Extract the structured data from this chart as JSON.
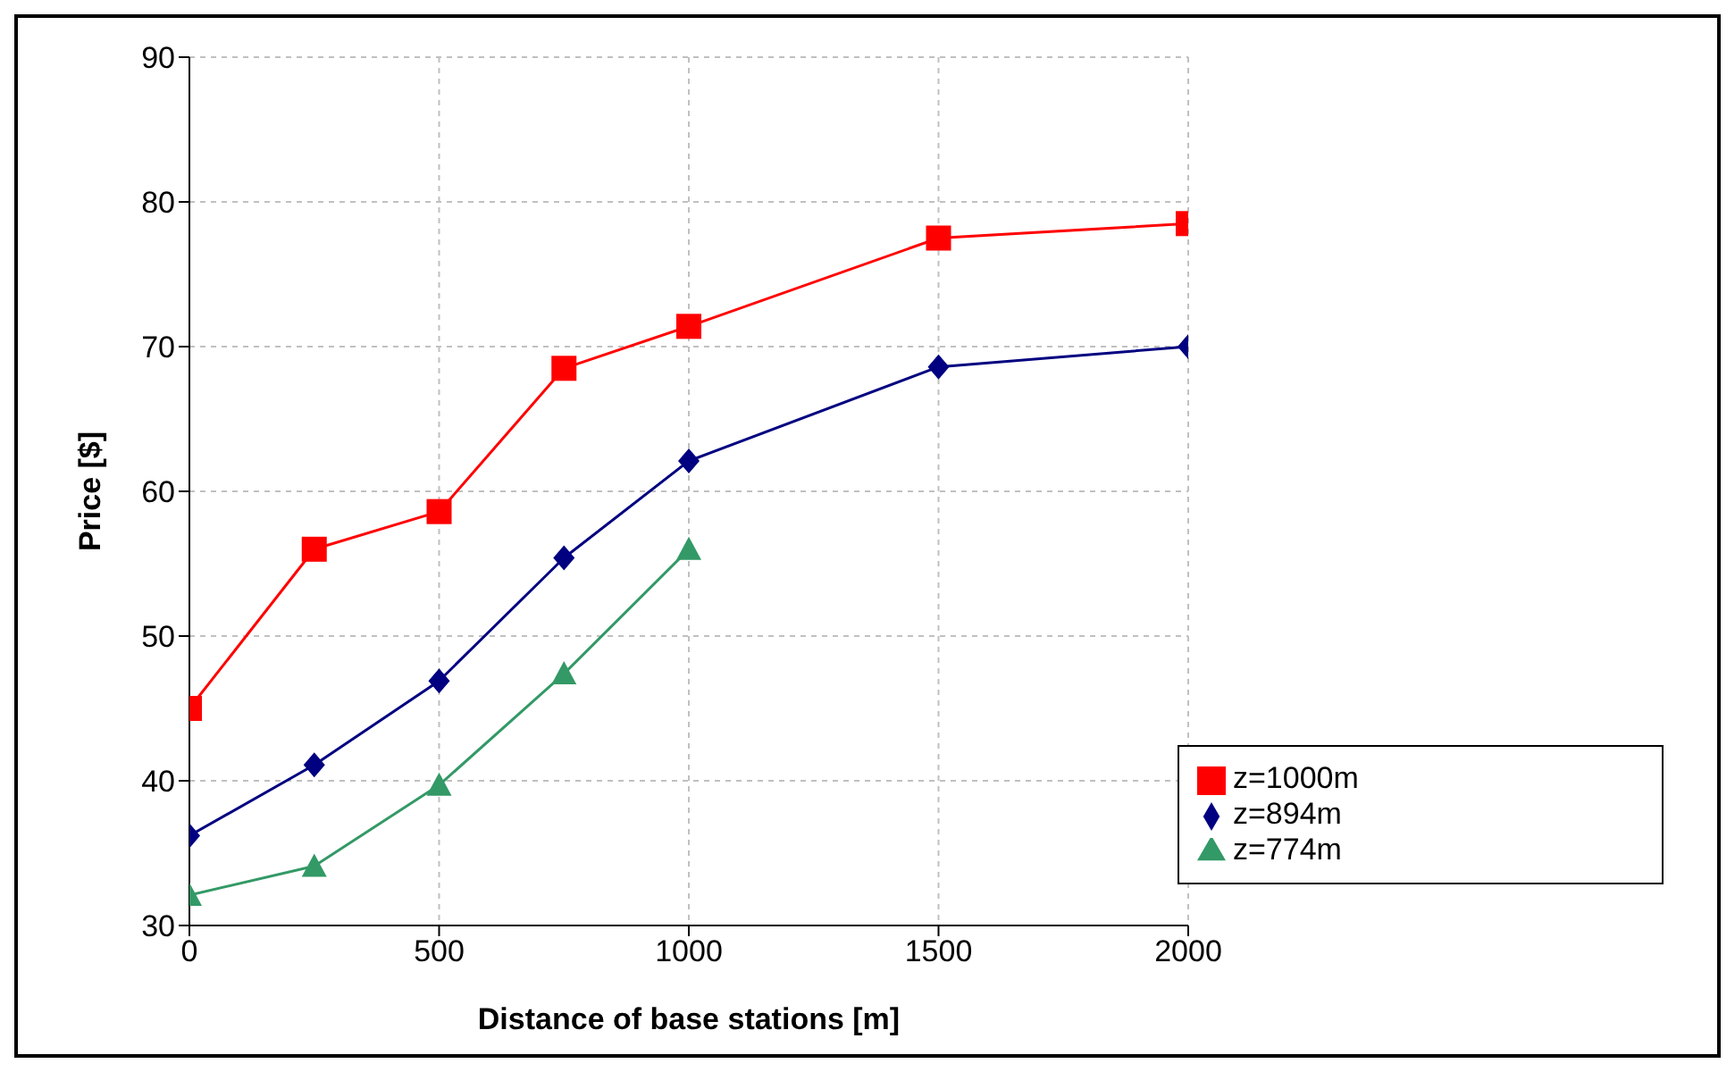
{
  "chart_data": {
    "type": "line",
    "xlabel": "Distance of base stations [m]",
    "ylabel": "Price [$]",
    "x": [
      0,
      250,
      500,
      750,
      1000,
      1500,
      2000
    ],
    "xlim": [
      0,
      2000
    ],
    "xticks": [
      0,
      500,
      1000,
      1500,
      2000
    ],
    "ylim": [
      30,
      90
    ],
    "yticks": [
      30,
      40,
      50,
      60,
      70,
      80,
      90
    ],
    "grid": true,
    "legend": "bottom right",
    "line_style": "solid",
    "series": [
      {
        "name": "z=1000m",
        "color": "#ff0000",
        "marker": "square",
        "values": [
          45,
          56,
          58.6,
          68.5,
          71.4,
          77.5,
          78.5
        ]
      },
      {
        "name": "z=894m",
        "color": "#000080",
        "marker": "diamond",
        "values": [
          36.2,
          41.1,
          46.9,
          55.4,
          62.1,
          68.6,
          70
        ]
      },
      {
        "name": "z=774m",
        "color": "#339966",
        "marker": "triangle",
        "values": [
          32.1,
          34.1,
          39.7,
          47.4,
          56,
          null,
          null
        ]
      }
    ]
  }
}
